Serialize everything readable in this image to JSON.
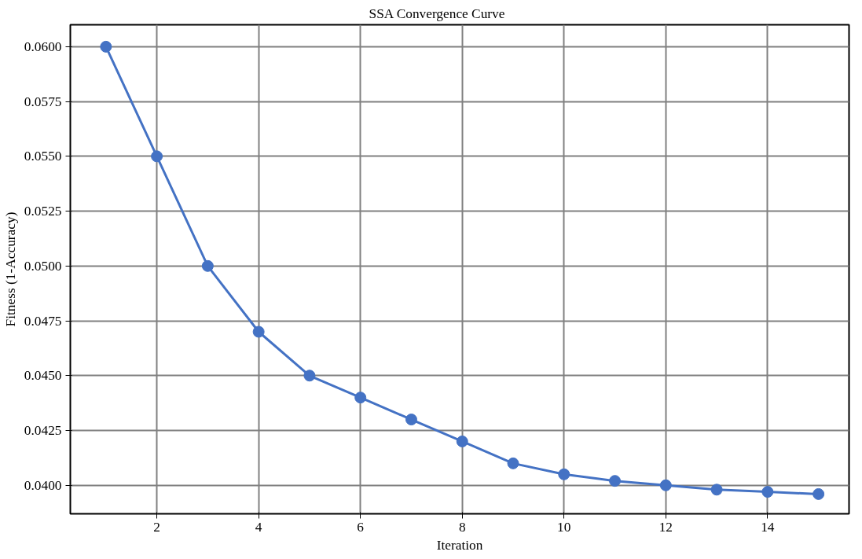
{
  "chart_data": {
    "type": "line",
    "title": "SSA Convergence Curve",
    "xlabel": "Iteration",
    "ylabel": "Fitness (1-Accuracy)",
    "x": [
      1,
      2,
      3,
      4,
      5,
      6,
      7,
      8,
      9,
      10,
      11,
      12,
      13,
      14,
      15
    ],
    "series": [
      {
        "color": "#4472c4",
        "values": [
          0.06,
          0.055,
          0.05,
          0.047,
          0.045,
          0.044,
          0.043,
          0.042,
          0.041,
          0.0405,
          0.0402,
          0.04,
          0.0398,
          0.0397,
          0.0396
        ]
      }
    ],
    "xlim": [
      0.3,
      15.6
    ],
    "xticks": [
      2,
      4,
      6,
      8,
      10,
      12,
      14
    ],
    "ylim": [
      0.0387,
      0.061
    ],
    "yticks": [
      {
        "value": 0.04,
        "label": "0.0400"
      },
      {
        "value": 0.0425,
        "label": "0.0425"
      },
      {
        "value": 0.045,
        "label": "0.0450"
      },
      {
        "value": 0.0475,
        "label": "0.0475"
      },
      {
        "value": 0.05,
        "label": "0.0500"
      },
      {
        "value": 0.0525,
        "label": "0.0525"
      },
      {
        "value": 0.055,
        "label": "0.0550"
      },
      {
        "value": 0.0575,
        "label": "0.0575"
      },
      {
        "value": 0.06,
        "label": "0.0600"
      }
    ],
    "grid": true,
    "marker": "circle",
    "line_style": "solid"
  }
}
